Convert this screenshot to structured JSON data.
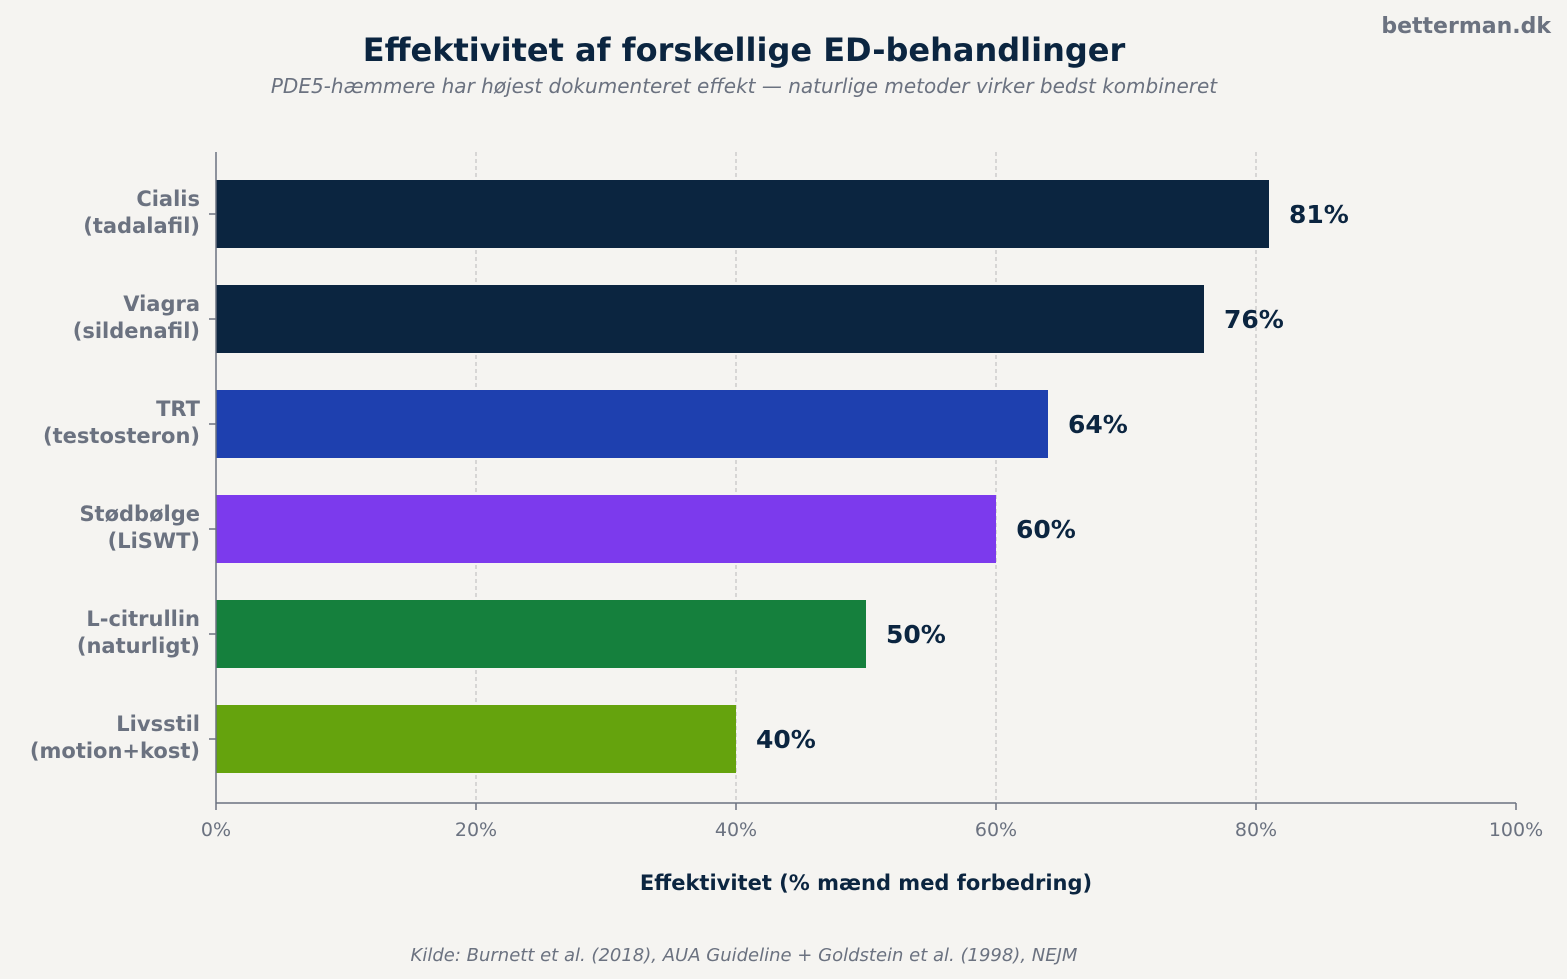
{
  "watermark": "betterman.dk",
  "chart_data": {
    "type": "bar",
    "orientation": "horizontal",
    "title": "Effektivitet af forskellige ED-behandlinger",
    "subtitle": "PDE5-hæmmere har højest dokumenteret effekt — naturlige metoder virker bedst kombineret",
    "xlabel": "Effektivitet (% mænd med forbedring)",
    "ylabel": "",
    "xlim": [
      0,
      100
    ],
    "xticks": [
      0,
      20,
      40,
      60,
      80,
      100
    ],
    "xtick_labels": [
      "0%",
      "20%",
      "40%",
      "60%",
      "80%",
      "100%"
    ],
    "grid": "vertical dashed",
    "categories": [
      [
        "Cialis",
        "(tadalafil)"
      ],
      [
        "Viagra",
        "(sildenafil)"
      ],
      [
        "TRT",
        "(testosteron)"
      ],
      [
        "Stødbølge",
        "(LiSWT)"
      ],
      [
        "L-citrullin",
        "(naturligt)"
      ],
      [
        "Livsstil",
        "(motion+kost)"
      ]
    ],
    "values": [
      81,
      76,
      64,
      60,
      50,
      40
    ],
    "value_labels": [
      "81%",
      "76%",
      "64%",
      "60%",
      "50%",
      "40%"
    ],
    "colors": [
      "#0b2540",
      "#0b2540",
      "#1e40af",
      "#7c3aed",
      "#15803d",
      "#65a30d"
    ],
    "source": "Kilde: Burnett et al. (2018), AUA Guideline + Goldstein et al. (1998), NEJM"
  }
}
